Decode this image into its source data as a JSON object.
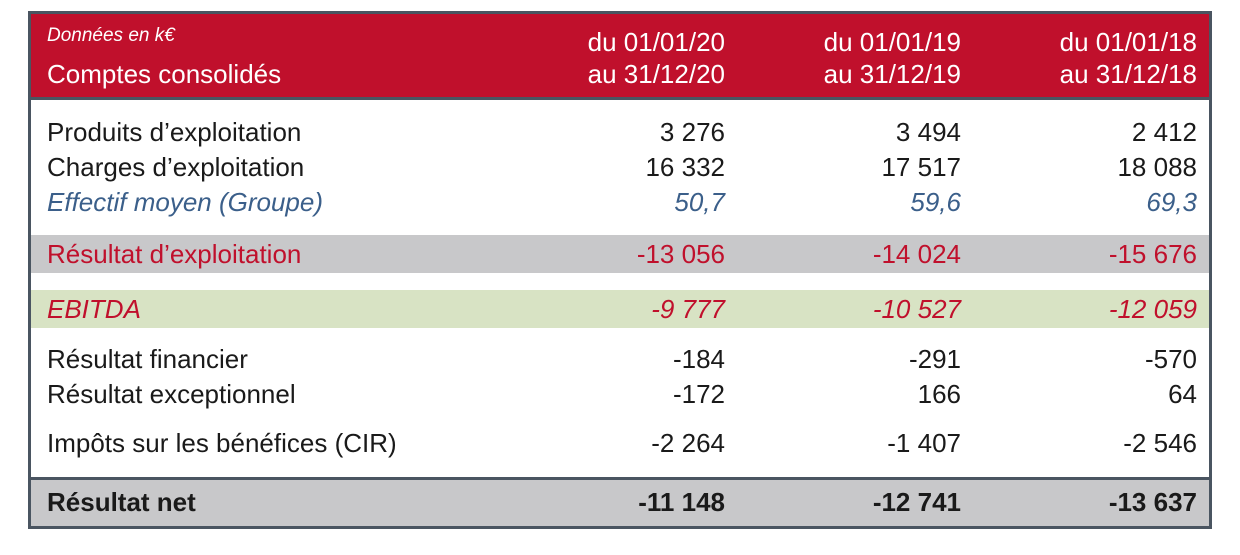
{
  "header": {
    "unit_note": "Données en k€",
    "subtitle": "Comptes consolidés",
    "columns": [
      {
        "from": "du 01/01/20",
        "to": "au 31/12/20"
      },
      {
        "from": "du 01/01/19",
        "to": "au 31/12/19"
      },
      {
        "from": "du 01/01/18",
        "to": "au 31/12/18"
      }
    ]
  },
  "rows": {
    "produits": {
      "label": "Produits d’exploitation",
      "values": [
        "3 276",
        "3 494",
        "2 412"
      ]
    },
    "charges": {
      "label": "Charges d’exploitation",
      "values": [
        "16 332",
        "17 517",
        "18 088"
      ]
    },
    "effectif": {
      "label": "Effectif moyen (Groupe)",
      "values": [
        "50,7",
        "59,6",
        "69,3"
      ]
    },
    "resultat_exploitation": {
      "label": "Résultat d’exploitation",
      "values": [
        "-13 056",
        "-14 024",
        "-15 676"
      ]
    },
    "ebitda": {
      "label": "EBITDA",
      "values": [
        "-9 777",
        "-10 527",
        "-12 059"
      ]
    },
    "resultat_financier": {
      "label": "Résultat financier",
      "values": [
        "-184",
        "-291",
        "-570"
      ]
    },
    "resultat_exceptionnel": {
      "label": "Résultat exceptionnel",
      "values": [
        "-172",
        "166",
        "64"
      ]
    },
    "impots": {
      "label": "Impôts sur les bénéfices (CIR)",
      "values": [
        "-2 264",
        "-1 407",
        "-2 546"
      ]
    },
    "resultat_net": {
      "label": "Résultat net",
      "values": [
        "-11 148",
        "-12 741",
        "-13 637"
      ]
    }
  },
  "colors": {
    "header_bg": "#c0102c",
    "border": "#4a5561",
    "grey_band": "#c8c8ca",
    "green_band": "#d8e3c4",
    "accent_red": "#c0102c",
    "italic_blue": "#3b5f8a"
  }
}
